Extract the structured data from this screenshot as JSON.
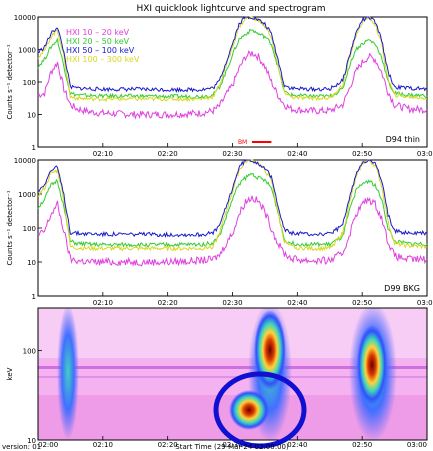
{
  "figure": {
    "title": "HXI quicklook lightcurve and spectrogram",
    "x_start_label": "Start Time (29-Mar-24 02:00:00)",
    "version": "version: 01"
  },
  "colors": {
    "band_10_20": "#e040e0",
    "band_20_50": "#33cc33",
    "band_50_100": "#1a1acc",
    "band_100_300": "#d8d820",
    "annotation_bar": "#ff0000",
    "circle": "#1010d0"
  },
  "chart_data": [
    {
      "type": "line",
      "panel": "top",
      "ylabel": "Counts s⁻¹ detector⁻¹",
      "yscale": "log",
      "ylim": [
        1,
        10000
      ],
      "y_ticks": [
        "1",
        "10",
        "100",
        "1000",
        "10000"
      ],
      "x_ticks": [
        "02:10",
        "02:20",
        "02:30",
        "02:40",
        "02:50",
        "03:00"
      ],
      "xlim_minutes": [
        0,
        60
      ],
      "detector_label": "D94 thin",
      "annotation": "BM",
      "annotation_range_minutes": [
        33,
        36
      ],
      "legend": [
        "HXI 10 – 20 keV",
        "HXI 20 – 50 keV",
        "HXI 50 – 100 keV",
        "HXI 100 – 300 keV"
      ],
      "x_minutes": [
        0,
        1,
        2,
        3,
        4,
        5,
        6,
        8,
        10,
        15,
        20,
        25,
        27,
        28,
        29,
        30,
        31,
        32,
        33,
        34,
        35,
        36,
        37,
        38,
        39,
        40,
        42,
        45,
        47,
        48,
        49,
        50,
        51,
        52,
        53,
        54,
        55,
        57,
        60
      ],
      "series": [
        {
          "name": "HXI 10 – 20 keV",
          "values": [
            40,
            45,
            200,
            400,
            60,
            20,
            15,
            12,
            11,
            10,
            10,
            11,
            13,
            18,
            40,
            80,
            250,
            600,
            800,
            600,
            300,
            100,
            40,
            20,
            15,
            14,
            13,
            13,
            20,
            60,
            200,
            400,
            600,
            500,
            200,
            50,
            20,
            15,
            14
          ]
        },
        {
          "name": "HXI 20 – 50 keV",
          "values": [
            300,
            500,
            1200,
            2000,
            300,
            45,
            40,
            38,
            37,
            37,
            36,
            36,
            40,
            70,
            200,
            700,
            2000,
            3000,
            4000,
            3000,
            2500,
            1500,
            300,
            50,
            40,
            38,
            37,
            36,
            60,
            300,
            1000,
            1500,
            2000,
            1500,
            600,
            100,
            45,
            40,
            38
          ]
        },
        {
          "name": "HXI 50 – 100 keV",
          "values": [
            800,
            1200,
            3000,
            5000,
            800,
            70,
            65,
            62,
            60,
            60,
            58,
            58,
            65,
            110,
            400,
            1500,
            6000,
            10000,
            10000,
            8000,
            6000,
            3000,
            500,
            80,
            65,
            62,
            60,
            60,
            110,
            600,
            3000,
            8000,
            10000,
            7000,
            2000,
            200,
            70,
            65,
            60
          ]
        },
        {
          "name": "HXI 100 – 300 keV",
          "values": [
            600,
            900,
            2500,
            4000,
            600,
            35,
            32,
            30,
            30,
            30,
            30,
            30,
            35,
            80,
            300,
            1200,
            5000,
            9000,
            10000,
            8000,
            5000,
            2500,
            300,
            50,
            35,
            32,
            32,
            32,
            80,
            500,
            2500,
            7000,
            10000,
            6000,
            1500,
            120,
            40,
            35,
            32
          ]
        }
      ]
    },
    {
      "type": "line",
      "panel": "middle",
      "ylabel": "Counts s⁻¹ detector⁻¹",
      "yscale": "log",
      "ylim": [
        1,
        10000
      ],
      "y_ticks": [
        "1",
        "10",
        "100",
        "1000",
        "10000"
      ],
      "x_ticks": [
        "02:10",
        "02:20",
        "02:30",
        "02:40",
        "02:50",
        "03:00"
      ],
      "xlim_minutes": [
        0,
        60
      ],
      "detector_label": "D99 BKG",
      "x_minutes": [
        0,
        1,
        2,
        3,
        4,
        5,
        6,
        8,
        10,
        15,
        20,
        25,
        27,
        28,
        29,
        30,
        31,
        32,
        33,
        34,
        35,
        36,
        37,
        38,
        39,
        40,
        42,
        45,
        47,
        48,
        49,
        50,
        51,
        52,
        53,
        54,
        55,
        57,
        60
      ],
      "series": [
        {
          "name": "HXI 10 – 20 keV",
          "values": [
            60,
            80,
            250,
            500,
            80,
            12,
            11,
            10,
            10,
            10,
            10,
            11,
            12,
            16,
            35,
            70,
            250,
            600,
            800,
            600,
            300,
            100,
            35,
            18,
            13,
            12,
            11,
            11,
            18,
            60,
            250,
            500,
            700,
            500,
            200,
            40,
            15,
            12,
            12
          ]
        },
        {
          "name": "HXI 20 – 50 keV",
          "values": [
            400,
            700,
            1800,
            2500,
            400,
            40,
            35,
            33,
            32,
            32,
            32,
            33,
            36,
            60,
            200,
            700,
            2000,
            3000,
            4000,
            3000,
            2500,
            1500,
            300,
            45,
            36,
            34,
            33,
            33,
            55,
            300,
            1200,
            2000,
            2500,
            1800,
            700,
            100,
            40,
            35,
            34
          ]
        },
        {
          "name": "HXI 50 – 100 keV",
          "values": [
            1200,
            2000,
            5000,
            6000,
            900,
            75,
            70,
            68,
            66,
            65,
            64,
            64,
            70,
            120,
            400,
            1500,
            6000,
            10000,
            10000,
            8000,
            6000,
            3000,
            500,
            90,
            72,
            68,
            66,
            66,
            120,
            700,
            3500,
            9000,
            10000,
            8000,
            2500,
            250,
            80,
            72,
            70
          ]
        },
        {
          "name": "HXI 100 – 300 keV",
          "values": [
            900,
            1500,
            4000,
            5000,
            700,
            28,
            26,
            25,
            25,
            25,
            25,
            25,
            28,
            70,
            300,
            1200,
            5000,
            9000,
            10000,
            8000,
            5000,
            2500,
            300,
            40,
            28,
            26,
            25,
            25,
            70,
            500,
            2800,
            8000,
            10000,
            7000,
            1800,
            150,
            35,
            30,
            28
          ]
        }
      ]
    },
    {
      "type": "heatmap",
      "panel": "bottom",
      "ylabel": "keV",
      "yscale": "log",
      "ylim": [
        10,
        300
      ],
      "y_ticks": [
        "10",
        "100"
      ],
      "x_ticks": [
        "02:00",
        "02:10",
        "02:20",
        "02:30",
        "02:40",
        "02:50",
        "03:00"
      ],
      "xlim_minutes": [
        0,
        60
      ],
      "xlabel": "Start Time (29-Mar-24 02:00:00)",
      "annotation": "blue ellipse around low-energy flare core",
      "ellipse_center_minutes": 33.5,
      "ellipse_center_kev": 15
    }
  ]
}
